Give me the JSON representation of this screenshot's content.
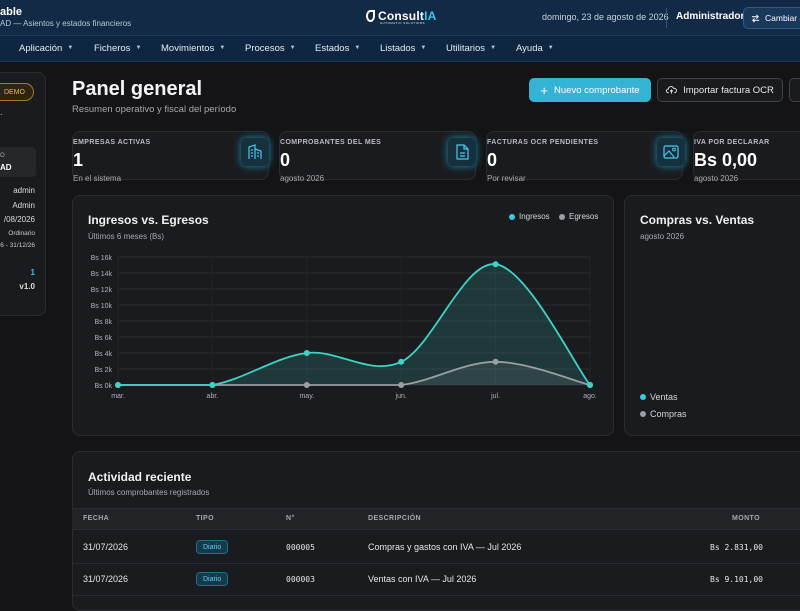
{
  "header": {
    "app_title": "able",
    "app_subtitle": "AD — Asientos y estados financieros",
    "logo_text": "Consult",
    "logo_text_accent": "IA",
    "logo_tagline": "AUTOMATIC SOLUTIONS",
    "date": "domingo, 23 de agosto de 2026",
    "user": "Administrador",
    "switch_label": "Cambiar e"
  },
  "menu": [
    {
      "label": "Aplicación"
    },
    {
      "label": "Ficheros"
    },
    {
      "label": "Movimientos"
    },
    {
      "label": "Procesos"
    },
    {
      "label": "Estados"
    },
    {
      "label": "Listados"
    },
    {
      "label": "Utilitarios"
    },
    {
      "label": "Ayuda"
    }
  ],
  "sidebar": {
    "badge": "DEMO",
    "dot": ".",
    "box_top": "O",
    "box_main": "AD",
    "user_name": "admin",
    "user_role": "Admin",
    "date": "/08/2026",
    "period_type": "Ordinario",
    "period_range": "6 - 31/12/26",
    "count": "1",
    "version": "v1.0"
  },
  "page": {
    "title": "Panel general",
    "subtitle": "Resumen operativo y fiscal del período",
    "btn_new": "Nuevo comprobante",
    "btn_import": "Importar factura OCR"
  },
  "stats": [
    {
      "label": "EMPRESAS ACTIVAS",
      "value": "1",
      "sub": "En el sistema",
      "icon": "building-icon"
    },
    {
      "label": "COMPROBANTES DEL MES",
      "value": "0",
      "sub": "agosto 2026",
      "icon": "document-icon"
    },
    {
      "label": "FACTURAS OCR PENDIENTES",
      "value": "0",
      "sub": "Por revisar",
      "icon": "image-icon"
    },
    {
      "label": "IVA POR DECLARAR",
      "value": "Bs 0,00",
      "sub": "agosto 2026",
      "icon": "none"
    }
  ],
  "income_chart": {
    "title": "Ingresos vs. Egresos",
    "subtitle": "Últimos 6 meses (Bs)"
  },
  "chart_data": [
    {
      "type": "area",
      "title": "Ingresos vs. Egresos",
      "subtitle": "Últimos 6 meses (Bs)",
      "categories": [
        "mar.",
        "abr.",
        "may.",
        "jun.",
        "jul.",
        "ago."
      ],
      "y_ticks": [
        "Bs 0k",
        "Bs 2k",
        "Bs 4k",
        "Bs 6k",
        "Bs 8k",
        "Bs 10k",
        "Bs 12k",
        "Bs 14k",
        "Bs 16k"
      ],
      "ylim": [
        0,
        16000
      ],
      "legend_position": "top-right",
      "grid": true,
      "series": [
        {
          "name": "Ingresos",
          "color": "#3fd3c6",
          "values": [
            0,
            0,
            4000,
            2900,
            15100,
            0
          ]
        },
        {
          "name": "Egresos",
          "color": "#9a9ea5",
          "values": [
            0,
            0,
            0,
            0,
            2900,
            0
          ]
        }
      ]
    },
    {
      "type": "pie",
      "title": "Compras vs. Ventas",
      "subtitle": "agosto 2026",
      "legend_position": "bottom-left",
      "series": [
        {
          "name": "Ventas",
          "color": "#3fd3c6",
          "values": [
            0
          ]
        },
        {
          "name": "Compras",
          "color": "#9a9ea5",
          "values": [
            0
          ]
        }
      ]
    }
  ],
  "activity": {
    "title": "Actividad reciente",
    "subtitle": "Últimos comprobantes registrados",
    "columns": [
      "FECHA",
      "TIPO",
      "N°",
      "DESCRIPCIÓN",
      "MONTO"
    ],
    "rows": [
      {
        "fecha": "31/07/2026",
        "tipo": "Diario",
        "numero": "000005",
        "descripcion": "Compras y gastos con IVA — Jul 2026",
        "monto": "Bs 2.831,00"
      },
      {
        "fecha": "31/07/2026",
        "tipo": "Diario",
        "numero": "000003",
        "descripcion": "Ventas con IVA — Jul 2026",
        "monto": "Bs 9.101,00"
      }
    ]
  },
  "colors": {
    "accent": "#35b3d4",
    "teal": "#3fd3c6",
    "gray": "#9a9ea5",
    "demo": "#f0b84a"
  }
}
